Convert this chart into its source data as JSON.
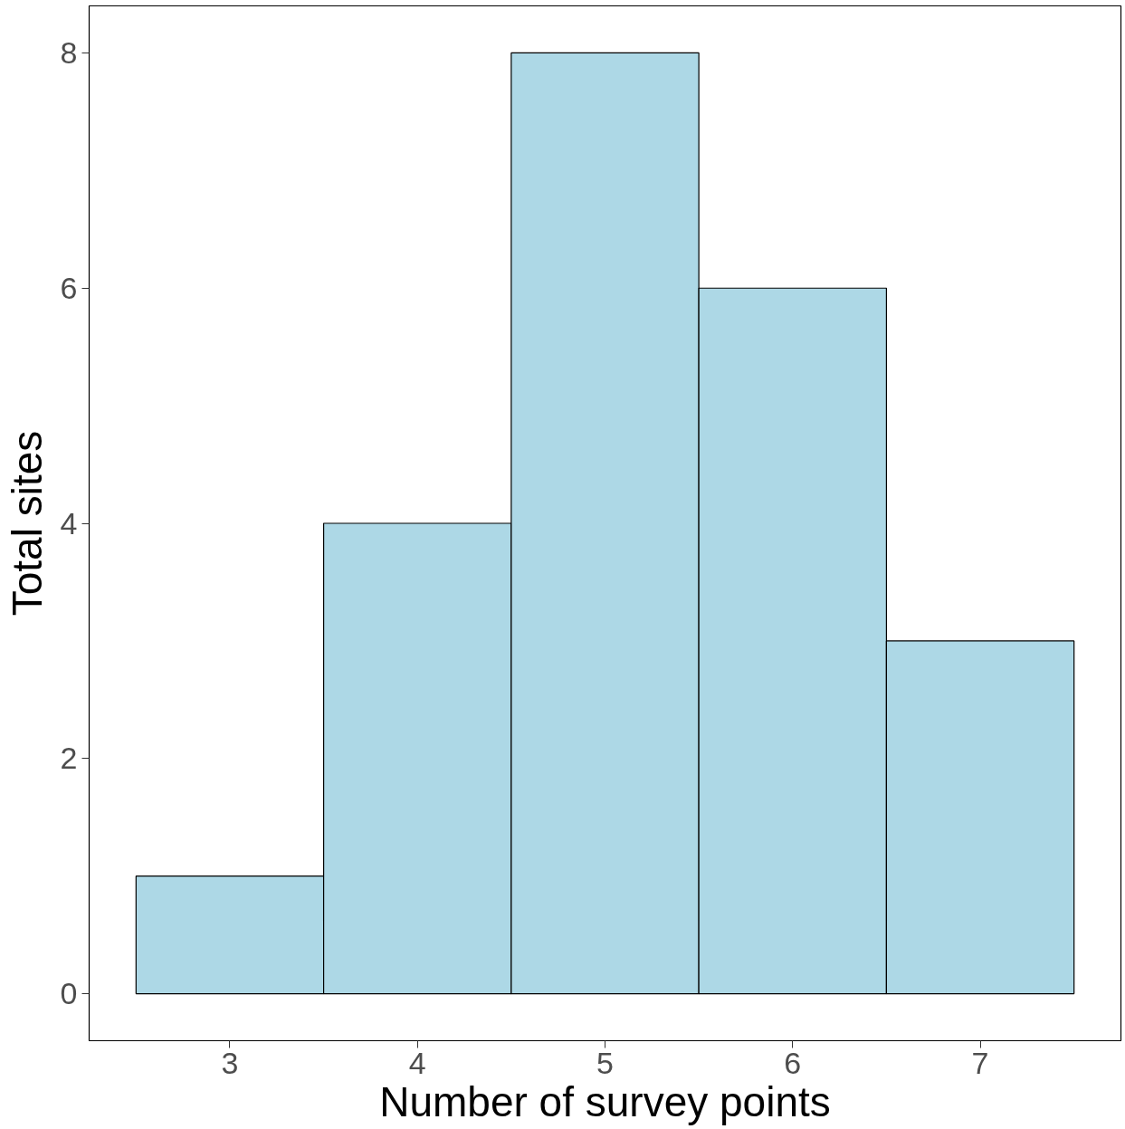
{
  "chart_data": {
    "type": "histogram",
    "xlabel": "Number of survey points",
    "ylabel": "Total sites",
    "bins": [
      2.5,
      3.5,
      4.5,
      5.5,
      6.5,
      7.5
    ],
    "values": [
      1,
      4,
      8,
      6,
      3
    ],
    "color": "#add8e6",
    "xlim": [
      2.25,
      7.75
    ],
    "ylim": [
      -0.4,
      8.4
    ],
    "xticks": [
      3,
      4,
      5,
      6,
      7
    ],
    "yticks": [
      0,
      2,
      4,
      6,
      8
    ],
    "grid": false
  }
}
